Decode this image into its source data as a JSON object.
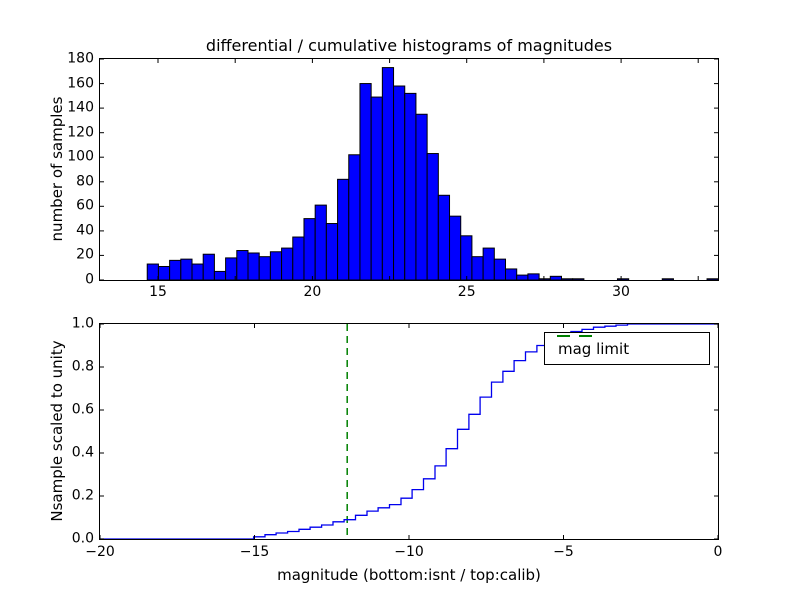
{
  "figure": {
    "title": "differential / cumulative histograms of magnitudes",
    "background": "#ffffff",
    "text_color": "#000000",
    "spine_color": "#000000"
  },
  "chart_data": [
    {
      "type": "bar",
      "role": "differential-histogram",
      "title": "differential / cumulative histograms of magnitudes",
      "ylabel": "number of samples",
      "xlim": [
        13.12,
        33.14
      ],
      "ylim": [
        0,
        180
      ],
      "grid": false,
      "bar_color": "#0000ff",
      "bar_edge_color": "#000000",
      "bin_start": 14.65,
      "bin_width": 0.3627,
      "values": [
        13,
        11,
        16,
        17,
        13,
        21,
        7,
        18,
        24,
        22,
        19,
        23,
        26,
        35,
        50,
        61,
        46,
        82,
        102,
        160,
        149,
        173,
        158,
        152,
        135,
        103,
        69,
        52,
        36,
        19,
        26,
        17,
        9,
        4,
        5,
        1,
        3,
        1,
        1,
        0,
        0,
        0,
        1,
        0,
        0,
        0,
        1,
        0,
        0,
        0,
        1
      ],
      "xticks_all": [
        15,
        17.5,
        20,
        22.5,
        25,
        27.5,
        30,
        32.5
      ],
      "xtick_labels": [
        {
          "value": 15,
          "label": "15"
        },
        {
          "value": 20,
          "label": "20"
        },
        {
          "value": 25,
          "label": "25"
        },
        {
          "value": 30,
          "label": "30"
        }
      ],
      "yticks": [
        {
          "value": 0,
          "label": "0"
        },
        {
          "value": 20,
          "label": "20"
        },
        {
          "value": 40,
          "label": "40"
        },
        {
          "value": 60,
          "label": "60"
        },
        {
          "value": 80,
          "label": "80"
        },
        {
          "value": 100,
          "label": "100"
        },
        {
          "value": 120,
          "label": "120"
        },
        {
          "value": 140,
          "label": "140"
        },
        {
          "value": 160,
          "label": "160"
        },
        {
          "value": 180,
          "label": "180"
        }
      ]
    },
    {
      "type": "line",
      "role": "cumulative-histogram",
      "ylabel": "Nsample scaled to unity",
      "xlabel": "magnitude (bottom:isnt / top:calib)",
      "xlim": [
        -20,
        0
      ],
      "ylim": [
        0,
        1.0
      ],
      "grid": false,
      "line_color": "#0000ee",
      "line_style": "steps",
      "steps": [
        [
          -20,
          0
        ],
        [
          -15.03,
          0.01
        ],
        [
          -14.66,
          0.02
        ],
        [
          -14.3,
          0.028
        ],
        [
          -13.93,
          0.035
        ],
        [
          -13.56,
          0.045
        ],
        [
          -13.2,
          0.055
        ],
        [
          -12.83,
          0.065
        ],
        [
          -12.46,
          0.08
        ],
        [
          -12.1,
          0.09
        ],
        [
          -11.73,
          0.11
        ],
        [
          -11.36,
          0.13
        ],
        [
          -11.0,
          0.145
        ],
        [
          -10.63,
          0.16
        ],
        [
          -10.26,
          0.19
        ],
        [
          -9.9,
          0.23
        ],
        [
          -9.53,
          0.28
        ],
        [
          -9.16,
          0.34
        ],
        [
          -8.8,
          0.42
        ],
        [
          -8.43,
          0.51
        ],
        [
          -8.06,
          0.58
        ],
        [
          -7.7,
          0.66
        ],
        [
          -7.33,
          0.73
        ],
        [
          -6.96,
          0.78
        ],
        [
          -6.6,
          0.83
        ],
        [
          -6.23,
          0.87
        ],
        [
          -5.86,
          0.9
        ],
        [
          -5.5,
          0.93
        ],
        [
          -5.13,
          0.95
        ],
        [
          -4.76,
          0.965
        ],
        [
          -4.4,
          0.975
        ],
        [
          -4.03,
          0.985
        ],
        [
          -3.66,
          0.99
        ],
        [
          -3.3,
          0.995
        ],
        [
          -2.93,
          1.0
        ]
      ],
      "vline": {
        "x": -12,
        "color": "#008000",
        "style": "dashed",
        "label": "mag limit"
      },
      "legend": {
        "label": "mag limit",
        "position": "upper right",
        "line_color": "#008000",
        "line_style": "dashed"
      },
      "xticks": [
        {
          "value": -20,
          "label": "−20"
        },
        {
          "value": -15,
          "label": "−15"
        },
        {
          "value": -10,
          "label": "−10"
        },
        {
          "value": -5,
          "label": "−5"
        },
        {
          "value": 0,
          "label": "0"
        }
      ],
      "yticks": [
        {
          "value": 0.0,
          "label": "0.0"
        },
        {
          "value": 0.2,
          "label": "0.2"
        },
        {
          "value": 0.4,
          "label": "0.4"
        },
        {
          "value": 0.6,
          "label": "0.6"
        },
        {
          "value": 0.8,
          "label": "0.8"
        },
        {
          "value": 1.0,
          "label": "1.0"
        }
      ]
    }
  ]
}
